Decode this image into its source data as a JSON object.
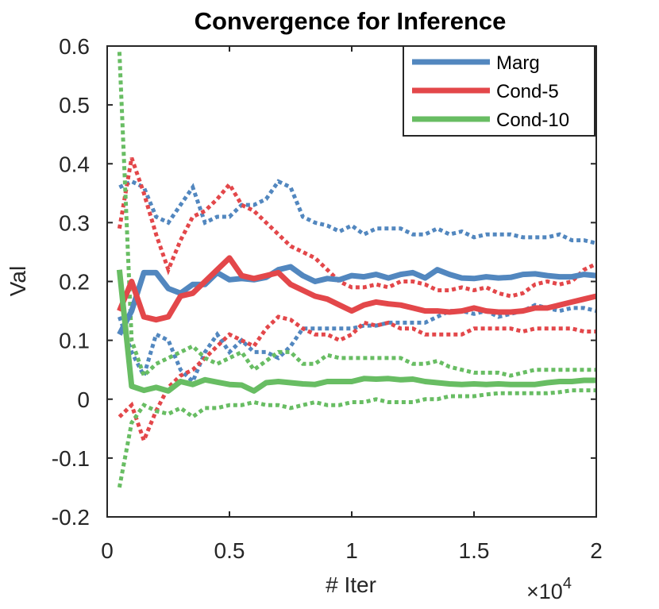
{
  "chart_data": {
    "type": "line",
    "title": "Convergence for Inference",
    "xlabel": "# Iter",
    "ylabel": "Val",
    "x_multiplier_label": "×10",
    "x_multiplier_exponent": "4",
    "xlim": [
      0,
      20000
    ],
    "ylim": [
      -0.2,
      0.6
    ],
    "x_ticks": [
      0,
      5000,
      10000,
      15000,
      20000
    ],
    "x_tick_labels": [
      "0",
      "0.5",
      "1",
      "1.5",
      "2"
    ],
    "y_ticks": [
      -0.2,
      -0.1,
      0,
      0.1,
      0.2,
      0.3,
      0.4,
      0.5,
      0.6
    ],
    "y_tick_labels": [
      "-0.2",
      "-0.1",
      "0",
      "0.1",
      "0.2",
      "0.3",
      "0.4",
      "0.5",
      "0.6"
    ],
    "grid": false,
    "legend_position": "top-right",
    "x": [
      500,
      1000,
      1500,
      2000,
      2500,
      3000,
      3500,
      4000,
      4500,
      5000,
      5500,
      6000,
      6500,
      7000,
      7500,
      8000,
      8500,
      9000,
      9500,
      10000,
      10500,
      11000,
      11500,
      12000,
      12500,
      13000,
      13500,
      14000,
      14500,
      15000,
      15500,
      16000,
      16500,
      17000,
      17500,
      18000,
      18500,
      19000,
      19500,
      20000
    ],
    "series": [
      {
        "name": "Marg",
        "color": "#5287bf",
        "values": [
          0.11,
          0.15,
          0.215,
          0.215,
          0.188,
          0.18,
          0.195,
          0.195,
          0.215,
          0.203,
          0.205,
          0.203,
          0.207,
          0.22,
          0.225,
          0.21,
          0.2,
          0.205,
          0.203,
          0.21,
          0.208,
          0.212,
          0.206,
          0.212,
          0.215,
          0.206,
          0.22,
          0.212,
          0.206,
          0.205,
          0.208,
          0.206,
          0.207,
          0.212,
          0.213,
          0.21,
          0.208,
          0.208,
          0.212,
          0.21
        ],
        "upper": [
          0.36,
          0.37,
          0.36,
          0.31,
          0.3,
          0.33,
          0.36,
          0.3,
          0.31,
          0.31,
          0.33,
          0.33,
          0.34,
          0.37,
          0.36,
          0.31,
          0.3,
          0.295,
          0.285,
          0.295,
          0.28,
          0.29,
          0.29,
          0.29,
          0.28,
          0.28,
          0.29,
          0.28,
          0.285,
          0.275,
          0.28,
          0.28,
          0.28,
          0.275,
          0.275,
          0.275,
          0.28,
          0.27,
          0.27,
          0.265
        ],
        "lower": [
          0.14,
          0.08,
          0.04,
          0.11,
          0.1,
          0.05,
          0.03,
          0.08,
          0.11,
          0.08,
          0.1,
          0.08,
          0.08,
          0.07,
          0.09,
          0.12,
          0.12,
          0.12,
          0.12,
          0.12,
          0.125,
          0.125,
          0.13,
          0.13,
          0.13,
          0.13,
          0.14,
          0.15,
          0.15,
          0.145,
          0.15,
          0.14,
          0.145,
          0.15,
          0.16,
          0.155,
          0.15,
          0.155,
          0.155,
          0.15
        ]
      },
      {
        "name": "Cond-5",
        "color": "#e3474a",
        "values": [
          0.15,
          0.2,
          0.14,
          0.135,
          0.14,
          0.175,
          0.18,
          0.2,
          0.22,
          0.24,
          0.21,
          0.205,
          0.21,
          0.215,
          0.195,
          0.185,
          0.175,
          0.17,
          0.16,
          0.15,
          0.16,
          0.165,
          0.162,
          0.16,
          0.155,
          0.15,
          0.15,
          0.148,
          0.15,
          0.155,
          0.15,
          0.148,
          0.148,
          0.15,
          0.155,
          0.155,
          0.16,
          0.165,
          0.17,
          0.175
        ],
        "upper": [
          0.29,
          0.41,
          0.35,
          0.28,
          0.22,
          0.27,
          0.31,
          0.32,
          0.34,
          0.365,
          0.33,
          0.32,
          0.3,
          0.28,
          0.26,
          0.25,
          0.24,
          0.22,
          0.2,
          0.19,
          0.19,
          0.195,
          0.19,
          0.2,
          0.2,
          0.195,
          0.185,
          0.185,
          0.19,
          0.185,
          0.19,
          0.18,
          0.175,
          0.18,
          0.195,
          0.2,
          0.195,
          0.2,
          0.22,
          0.23
        ],
        "lower": [
          -0.03,
          -0.01,
          -0.07,
          -0.02,
          0.02,
          0.04,
          0.05,
          0.07,
          0.09,
          0.11,
          0.1,
          0.09,
          0.12,
          0.14,
          0.135,
          0.12,
          0.11,
          0.11,
          0.1,
          0.11,
          0.13,
          0.125,
          0.13,
          0.12,
          0.12,
          0.11,
          0.11,
          0.11,
          0.11,
          0.12,
          0.12,
          0.12,
          0.12,
          0.115,
          0.12,
          0.12,
          0.12,
          0.12,
          0.115,
          0.115
        ]
      },
      {
        "name": "Cond-10",
        "color": "#68bd63",
        "values": [
          0.22,
          0.022,
          0.015,
          0.02,
          0.014,
          0.03,
          0.025,
          0.033,
          0.029,
          0.025,
          0.024,
          0.014,
          0.028,
          0.03,
          0.028,
          0.026,
          0.025,
          0.03,
          0.03,
          0.03,
          0.035,
          0.034,
          0.035,
          0.033,
          0.034,
          0.03,
          0.028,
          0.026,
          0.025,
          0.026,
          0.025,
          0.026,
          0.025,
          0.025,
          0.025,
          0.028,
          0.03,
          0.03,
          0.032,
          0.032
        ],
        "upper": [
          0.59,
          0.1,
          0.04,
          0.06,
          0.07,
          0.08,
          0.09,
          0.07,
          0.06,
          0.07,
          0.08,
          0.05,
          0.065,
          0.08,
          0.08,
          0.06,
          0.06,
          0.075,
          0.07,
          0.07,
          0.07,
          0.07,
          0.07,
          0.07,
          0.06,
          0.06,
          0.065,
          0.055,
          0.05,
          0.045,
          0.045,
          0.045,
          0.04,
          0.045,
          0.05,
          0.05,
          0.05,
          0.05,
          0.05,
          0.05
        ],
        "lower": [
          -0.15,
          -0.04,
          -0.01,
          -0.02,
          -0.025,
          -0.015,
          -0.03,
          -0.015,
          -0.015,
          -0.01,
          -0.01,
          -0.005,
          -0.01,
          -0.01,
          -0.015,
          -0.01,
          -0.005,
          -0.01,
          -0.01,
          -0.005,
          -0.005,
          0.0,
          -0.005,
          -0.005,
          -0.005,
          0.0,
          0.0,
          0.005,
          0.005,
          0.005,
          0.008,
          0.01,
          0.01,
          0.01,
          0.01,
          0.01,
          0.012,
          0.015,
          0.015,
          0.015
        ]
      }
    ]
  }
}
